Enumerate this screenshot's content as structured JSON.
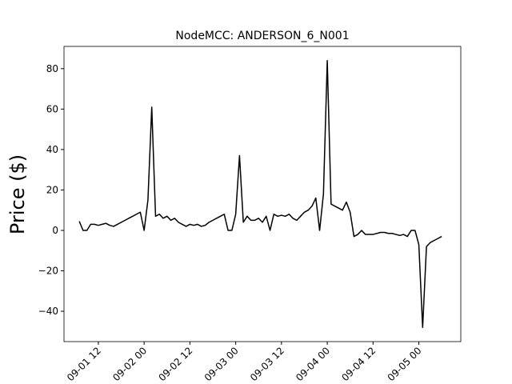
{
  "chart_data": {
    "type": "line",
    "title": "NodeMCC: ANDERSON_6_N001",
    "y_label": "Price ($)",
    "x": [
      "09-01 07",
      "09-01 08",
      "09-01 09",
      "09-01 10",
      "09-01 11",
      "09-01 12",
      "09-01 13",
      "09-01 14",
      "09-01 15",
      "09-01 16",
      "09-01 17",
      "09-01 18",
      "09-01 19",
      "09-01 20",
      "09-01 21",
      "09-01 22",
      "09-01 23",
      "09-02 00",
      "09-02 01",
      "09-02 02",
      "09-02 03",
      "09-02 04",
      "09-02 05",
      "09-02 06",
      "09-02 07",
      "09-02 08",
      "09-02 09",
      "09-02 10",
      "09-02 11",
      "09-02 12",
      "09-02 13",
      "09-02 14",
      "09-02 15",
      "09-02 16",
      "09-02 17",
      "09-02 18",
      "09-02 19",
      "09-02 20",
      "09-02 21",
      "09-02 22",
      "09-02 23",
      "09-03 00",
      "09-03 01",
      "09-03 02",
      "09-03 03",
      "09-03 04",
      "09-03 05",
      "09-03 06",
      "09-03 07",
      "09-03 08",
      "09-03 09",
      "09-03 10",
      "09-03 11",
      "09-03 12",
      "09-03 13",
      "09-03 14",
      "09-03 15",
      "09-03 16",
      "09-03 17",
      "09-03 18",
      "09-03 19",
      "09-03 20",
      "09-03 21",
      "09-03 22",
      "09-03 23",
      "09-04 00",
      "09-04 01",
      "09-04 02",
      "09-04 03",
      "09-04 04",
      "09-04 05",
      "09-04 06",
      "09-04 07",
      "09-04 08",
      "09-04 09",
      "09-04 10",
      "09-04 11",
      "09-04 12",
      "09-04 13",
      "09-04 14",
      "09-04 15",
      "09-04 16",
      "09-04 17",
      "09-04 18",
      "09-04 19",
      "09-04 20",
      "09-04 21",
      "09-04 22",
      "09-04 23",
      "09-05 00",
      "09-05 01",
      "09-05 02",
      "09-05 03",
      "09-05 04",
      "09-05 05",
      "09-05 06"
    ],
    "series": [
      {
        "color": "#000000",
        "values": [
          4.5,
          0,
          0,
          3,
          3,
          2.5,
          3,
          3.5,
          2.5,
          2,
          3,
          4,
          5,
          6,
          7,
          8,
          9,
          0,
          15,
          61,
          7,
          8,
          6,
          7,
          5,
          6,
          4,
          3,
          2,
          3,
          2.5,
          3,
          2,
          2.5,
          4,
          5,
          6,
          7,
          8,
          0,
          0,
          8,
          37,
          4,
          7,
          5,
          5,
          6,
          4,
          7,
          0,
          8,
          7,
          7.5,
          7,
          8,
          6,
          5,
          7,
          9,
          10,
          12,
          16,
          0,
          18,
          84,
          13,
          12,
          11,
          10,
          14,
          9,
          -3,
          -2,
          0,
          -2,
          -2,
          -2,
          -1.5,
          -1,
          -1,
          -1.5,
          -1.5,
          -2,
          -2.5,
          -2,
          -3,
          0,
          0,
          -7,
          -48,
          -8,
          -6,
          -5,
          -4,
          -3
        ]
      }
    ],
    "xlim": [
      "09-01 03",
      "09-05 11"
    ],
    "xticks": [
      "09-01 12",
      "09-02 00",
      "09-02 12",
      "09-03 00",
      "09-03 12",
      "09-04 00",
      "09-04 12",
      "09-05 00"
    ],
    "ylim": [
      -55,
      91
    ],
    "yticks": [
      {
        "value": -40,
        "label": "−40"
      },
      {
        "value": -20,
        "label": "−20"
      },
      0,
      20,
      40,
      60,
      80
    ]
  }
}
